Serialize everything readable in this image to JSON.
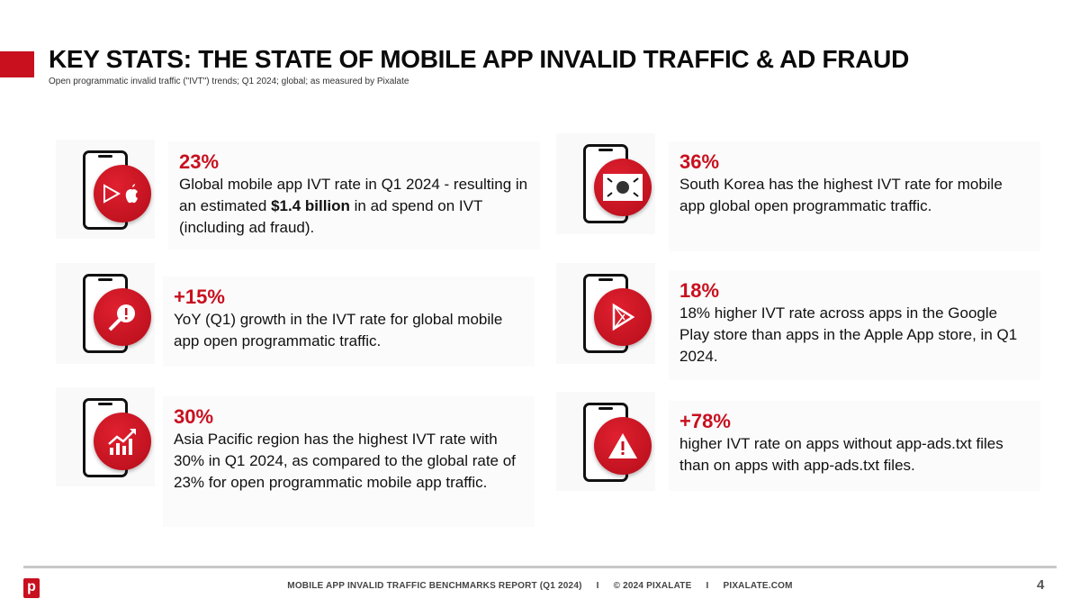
{
  "header": {
    "title": "KEY STATS: THE STATE OF MOBILE APP INVALID TRAFFIC & AD FRAUD",
    "subtitle": "Open programmatic invalid traffic (\"IVT\") trends; Q1 2024; global; as measured by Pixalate"
  },
  "stats": [
    {
      "value": "23%",
      "pre": "Global mobile app IVT rate in Q1 2024 - resulting in an estimated ",
      "bold": "$1.4 billion",
      "post": " in ad spend on IVT (including ad fraud).",
      "icon": "play-apple-icon"
    },
    {
      "value": "+15%",
      "pre": "YoY (Q1) growth in the IVT rate for global mobile app open programmatic traffic.",
      "icon": "magnifier-alert-icon"
    },
    {
      "value": "30%",
      "pre": "Asia Pacific region has the highest IVT rate with 30% in Q1 2024, as compared to the global rate of 23% for open programmatic mobile app traffic.",
      "icon": "growth-chart-icon"
    },
    {
      "value": "36%",
      "pre": "South Korea has the highest IVT rate for mobile app global open programmatic traffic.",
      "icon": "south-korea-flag-icon"
    },
    {
      "value": "18%",
      "pre": "18% higher IVT rate across apps in the Google Play store than apps in the Apple App store, in Q1 2024.",
      "icon": "google-play-icon"
    },
    {
      "value": "+78%",
      "pre": "higher IVT rate on apps without app-ads.txt files than on apps with app-ads.txt files.",
      "icon": "warning-icon"
    }
  ],
  "footer": {
    "report": "MOBILE APP INVALID TRAFFIC BENCHMARKS REPORT (Q1 2024)",
    "sep": "I",
    "copyright": "© 2024 PIXALATE",
    "site": "PIXALATE.COM",
    "page": "4",
    "logo": "p"
  },
  "colors": {
    "accent": "#c8101f"
  }
}
